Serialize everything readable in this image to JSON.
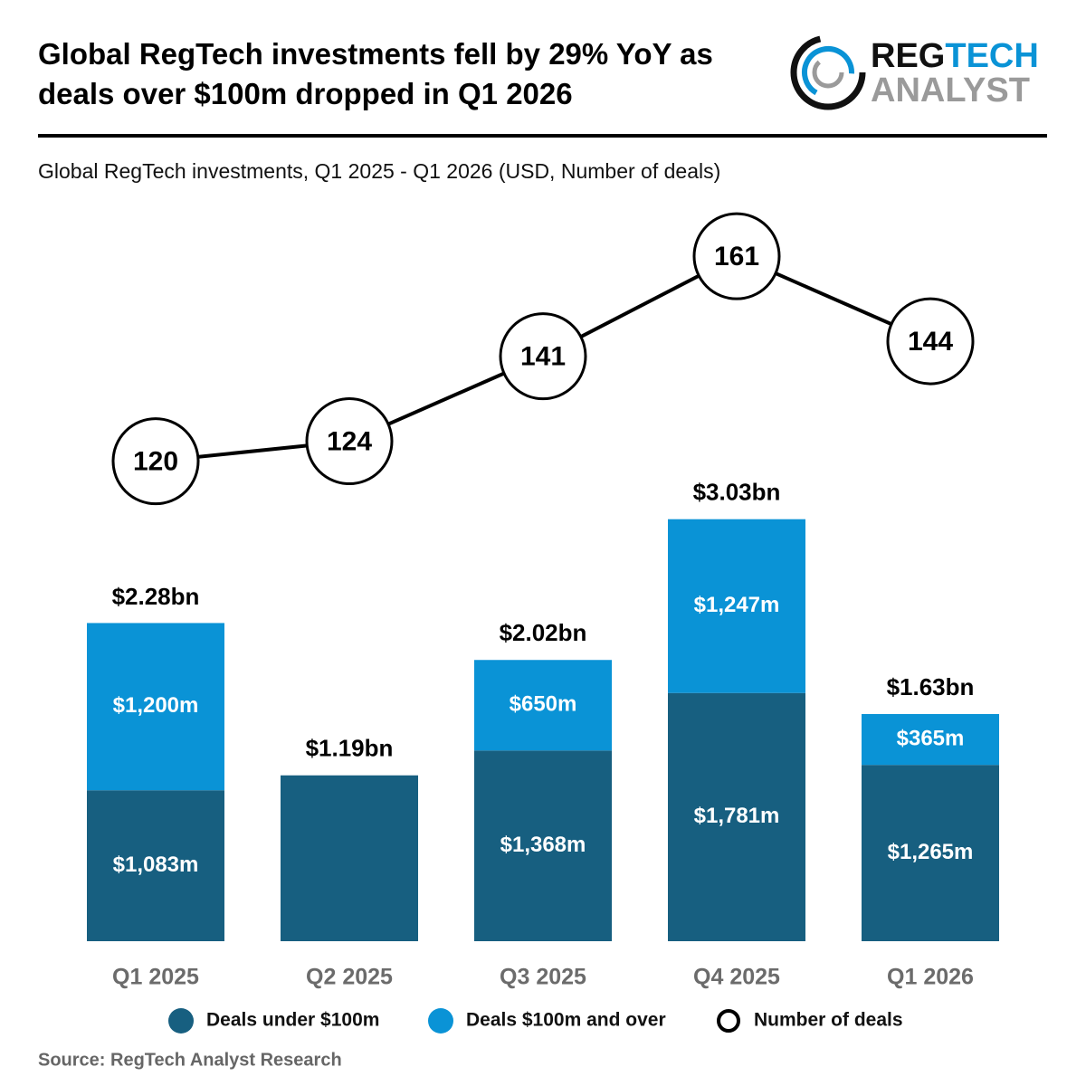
{
  "logo": {
    "part1": "REG",
    "part2": "TECH",
    "part3": "ANALYST"
  },
  "source": "Source: RegTech Analyst Research",
  "chart_data": {
    "type": "bar-line",
    "title": "Global RegTech investments fell by 29% YoY as deals over $100m dropped in Q1 2026",
    "subtitle": "Global RegTech investments, Q1 2025 - Q1 2026 (USD, Number of deals)",
    "categories": [
      "Q1 2025",
      "Q2 2025",
      "Q3 2025",
      "Q4 2025",
      "Q1 2026"
    ],
    "series": [
      {
        "name": "Deals under $100m",
        "color": "#175f80",
        "type": "bar",
        "values": [
          1083,
          1190,
          1368,
          1781,
          1265
        ],
        "value_labels": [
          "$1,083m",
          null,
          "$1,368m",
          "$1,781m",
          "$1,265m"
        ]
      },
      {
        "name": "Deals $100m and over",
        "color": "#0a93d6",
        "type": "bar",
        "values": [
          1200,
          null,
          650,
          1247,
          365
        ],
        "value_labels": [
          "$1,200m",
          null,
          "$650m",
          "$1,247m",
          "$365m"
        ]
      },
      {
        "name": "Number of deals",
        "color": "#000000",
        "type": "line",
        "axis": "y2",
        "values": [
          120,
          124,
          141,
          161,
          144
        ]
      }
    ],
    "totals": {
      "values": [
        2280,
        1190,
        2020,
        3030,
        1630
      ],
      "value_labels": [
        "$2.28bn",
        "$1.19bn",
        "$2.02bn",
        "$3.03bn",
        "$1.63bn"
      ]
    },
    "ylim": [
      0,
      5130
    ],
    "y2lim": [
      24,
      167
    ],
    "grid": false
  }
}
